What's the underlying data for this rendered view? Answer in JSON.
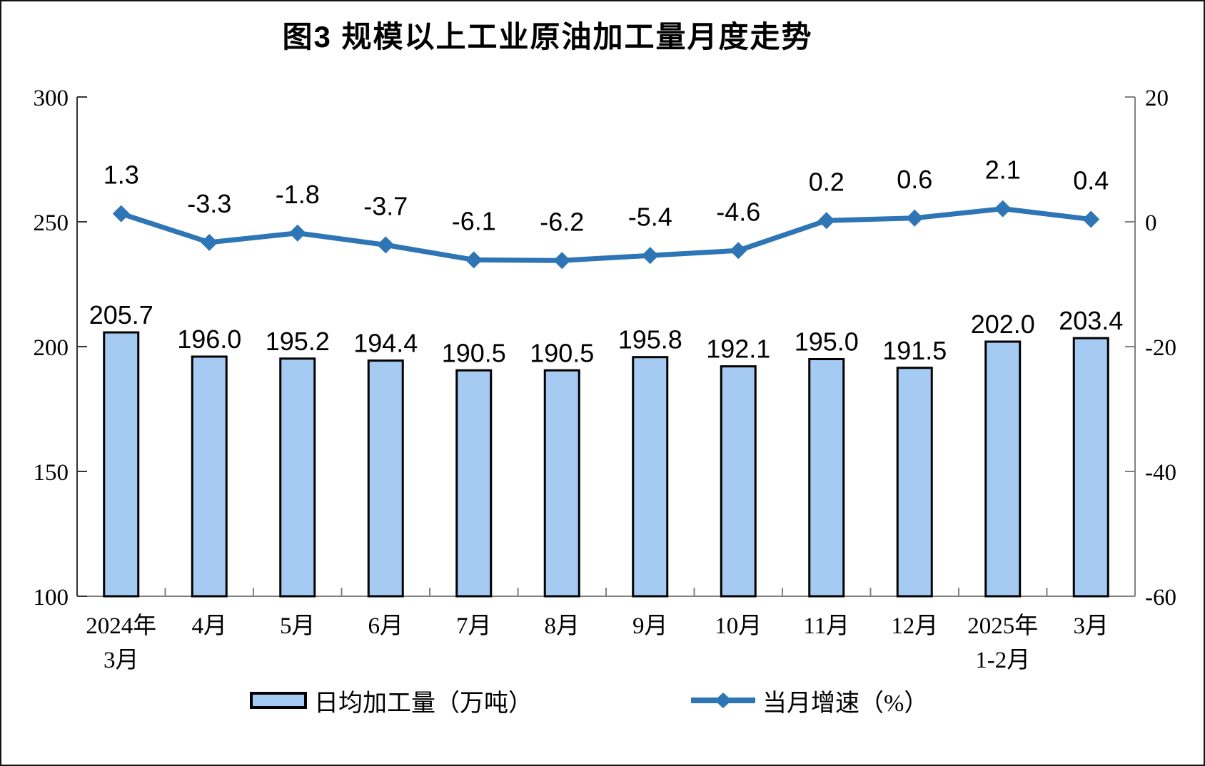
{
  "chart_data": {
    "type": "bar+line",
    "title": "图3 规模以上工业原油加工量月度走势",
    "categories": [
      "2024年\n3月",
      "4月",
      "5月",
      "6月",
      "7月",
      "8月",
      "9月",
      "10月",
      "11月",
      "12月",
      "2025年\n1-2月",
      "3月"
    ],
    "series": [
      {
        "name": "日均加工量（万吨）",
        "type": "bar",
        "axis": "left",
        "values": [
          205.7,
          196.0,
          195.2,
          194.4,
          190.5,
          190.5,
          195.8,
          192.1,
          195.0,
          191.5,
          202.0,
          203.4
        ]
      },
      {
        "name": "当月增速（%）",
        "type": "line",
        "axis": "right",
        "values": [
          1.3,
          -3.3,
          -1.8,
          -3.7,
          -6.1,
          -6.2,
          -5.4,
          -4.6,
          0.2,
          0.6,
          2.1,
          0.4
        ]
      }
    ],
    "left_axis": {
      "min": 100,
      "max": 300,
      "ticks": [
        300,
        250,
        200,
        150,
        100
      ]
    },
    "right_axis": {
      "min": -60,
      "max": 20,
      "ticks": [
        20,
        0,
        -20,
        -40,
        -60
      ]
    },
    "grid": false,
    "legend_position": "bottom",
    "colors": {
      "bar_fill": "#A5CBF2",
      "bar_border": "#000000",
      "line": "#2E75B6",
      "label": "#000000",
      "axis_dark": "#333333",
      "axis_light": "#808080"
    }
  }
}
